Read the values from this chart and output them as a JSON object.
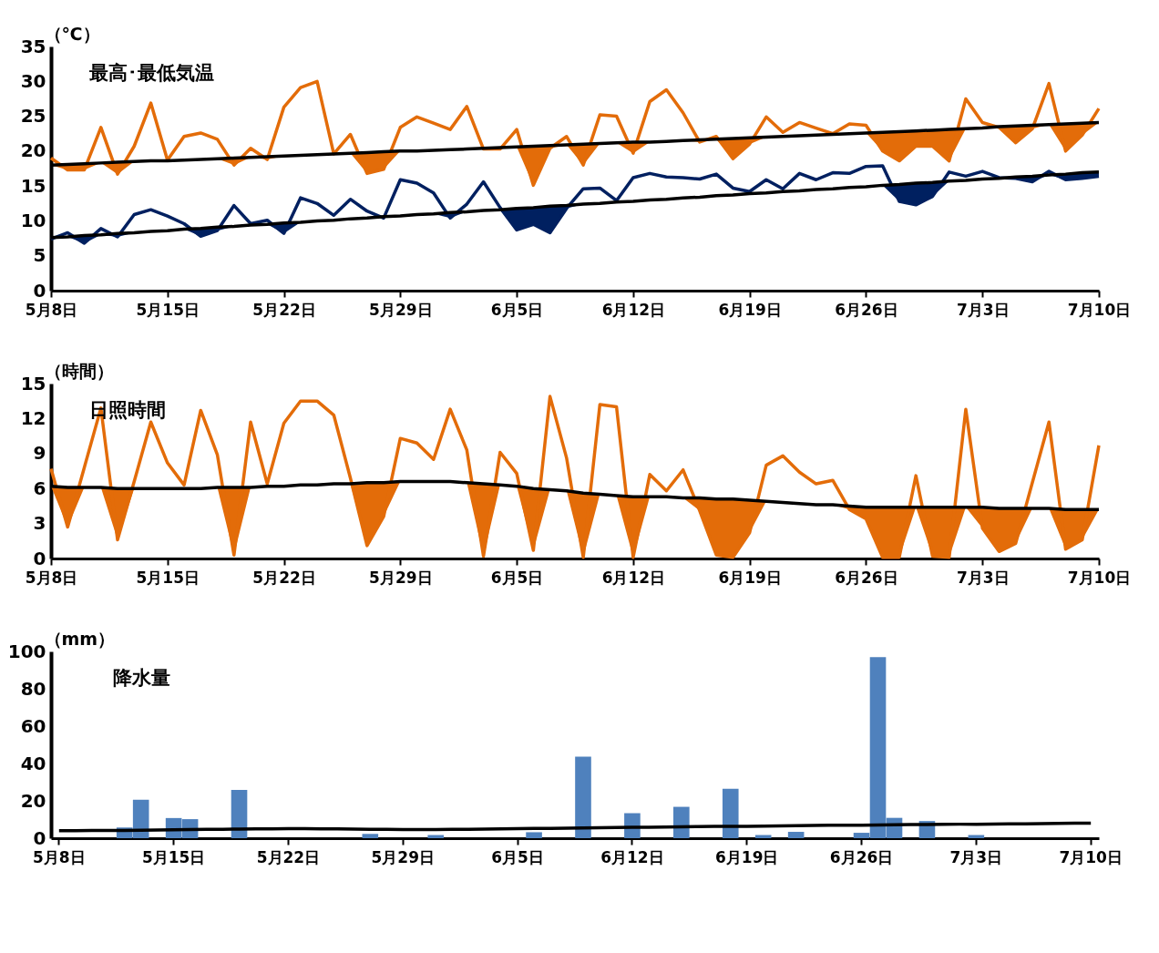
{
  "chart_data": [
    {
      "type": "line",
      "title": "最高･最低気温",
      "ylabel": "（℃）",
      "ylim": [
        0,
        35
      ],
      "yticks": [
        0,
        5,
        10,
        15,
        20,
        25,
        30,
        35
      ],
      "categories": [
        "5月8日",
        null,
        null,
        null,
        null,
        null,
        null,
        "5月15日",
        null,
        null,
        null,
        null,
        null,
        null,
        "5月22日",
        null,
        null,
        null,
        null,
        null,
        null,
        "5月29日",
        null,
        null,
        null,
        null,
        null,
        null,
        "6月5日",
        null,
        null,
        null,
        null,
        null,
        null,
        "6月12日",
        null,
        null,
        null,
        null,
        null,
        null,
        "6月19日",
        null,
        null,
        null,
        null,
        null,
        null,
        "6月26日",
        null,
        null,
        null,
        null,
        null,
        null,
        "7月3日",
        null,
        null,
        null,
        null,
        null,
        null,
        "7月10日"
      ],
      "series": [
        {
          "color": "#e36c09",
          "lower": [
            18.0,
            17.3,
            17.3,
            18.3,
            16.7,
            18.5,
            18.6,
            18.6,
            18.7,
            18.8,
            18.9,
            18.0,
            19.1,
            18.8,
            19.3,
            19.4,
            19.5,
            19.6,
            19.7,
            16.8,
            17.4,
            20.0,
            20.0,
            20.1,
            20.2,
            20.3,
            20.3,
            20.3,
            20.6,
            15.1,
            20.4,
            20.9,
            18.0,
            21.1,
            21.2,
            19.7,
            21.3,
            21.4,
            21.5,
            21.3,
            21.7,
            18.9,
            21.0,
            22.0,
            22.1,
            22.2,
            22.3,
            22.4,
            22.5,
            22.6,
            20.0,
            18.6,
            20.7,
            20.7,
            18.6,
            23.2,
            23.3,
            23.4,
            21.2,
            23.2,
            23.8,
            20.0,
            22.3,
            24.1
          ],
          "upper": [
            18.0,
            18.1,
            18.2,
            18.3,
            18.4,
            18.5,
            18.6,
            18.6,
            18.7,
            18.8,
            18.9,
            19.0,
            19.1,
            19.2,
            19.3,
            19.4,
            19.5,
            19.6,
            19.7,
            19.8,
            19.9,
            20.0,
            20.0,
            20.1,
            20.2,
            20.3,
            20.4,
            20.5,
            20.6,
            20.7,
            20.8,
            20.9,
            21.0,
            21.1,
            21.2,
            21.3,
            21.3,
            21.4,
            21.5,
            21.6,
            21.7,
            21.8,
            21.9,
            22.0,
            22.1,
            22.2,
            22.3,
            22.4,
            22.5,
            22.6,
            22.7,
            22.8,
            22.9,
            23.0,
            23.1,
            23.2,
            23.3,
            23.5,
            23.6,
            23.7,
            23.8,
            23.9,
            24.0,
            24.1
          ],
          "values": [
            19.0,
            17.3,
            17.3,
            23.4,
            16.7,
            20.7,
            26.9,
            18.7,
            22.1,
            22.6,
            21.7,
            18.0,
            20.4,
            18.8,
            26.3,
            29.1,
            30.0,
            19.6,
            22.4,
            16.8,
            17.4,
            23.4,
            24.9,
            24.0,
            23.1,
            26.4,
            20.3,
            20.3,
            23.1,
            15.1,
            20.4,
            22.1,
            18.0,
            25.2,
            25.0,
            19.7,
            27.1,
            28.8,
            25.5,
            21.3,
            22.1,
            18.9,
            21.0,
            24.9,
            22.7,
            24.1,
            23.3,
            22.5,
            23.9,
            23.7,
            20.0,
            18.6,
            20.7,
            20.7,
            18.6,
            27.5,
            24.1,
            23.4,
            21.2,
            23.2,
            29.7,
            20.0,
            22.3,
            26.1
          ]
        },
        {
          "color": "#000000",
          "values": [
            18.0,
            18.1,
            18.2,
            18.3,
            18.4,
            18.5,
            18.6,
            18.6,
            18.7,
            18.8,
            18.9,
            19.0,
            19.1,
            19.2,
            19.3,
            19.4,
            19.5,
            19.6,
            19.7,
            19.8,
            19.9,
            20.0,
            20.0,
            20.1,
            20.2,
            20.3,
            20.4,
            20.5,
            20.6,
            20.7,
            20.8,
            20.9,
            21.0,
            21.1,
            21.2,
            21.3,
            21.3,
            21.4,
            21.5,
            21.6,
            21.7,
            21.8,
            21.9,
            22.0,
            22.1,
            22.2,
            22.3,
            22.4,
            22.5,
            22.6,
            22.7,
            22.8,
            22.9,
            23.0,
            23.1,
            23.2,
            23.3,
            23.5,
            23.6,
            23.7,
            23.8,
            23.9,
            24.0,
            24.1
          ]
        },
        {
          "color": "#002060",
          "lower": [
            7.4,
            7.7,
            6.8,
            8.0,
            7.7,
            8.3,
            8.5,
            8.6,
            8.8,
            7.8,
            8.6,
            9.2,
            9.4,
            9.5,
            8.2,
            9.8,
            10.0,
            10.1,
            10.3,
            10.4,
            10.4,
            10.7,
            10.9,
            11.0,
            10.4,
            11.3,
            11.5,
            11.6,
            8.7,
            9.5,
            8.3,
            11.8,
            12.4,
            12.5,
            12.7,
            12.8,
            13.0,
            13.1,
            13.3,
            13.4,
            13.6,
            13.7,
            13.9,
            14.0,
            14.2,
            14.3,
            14.5,
            14.6,
            14.8,
            14.9,
            15.1,
            12.8,
            12.3,
            13.5,
            15.7,
            15.8,
            16.0,
            16.1,
            16.1,
            15.6,
            16.6,
            15.9,
            16.1,
            16.4
          ],
          "upper": [
            7.6,
            7.7,
            7.9,
            8.0,
            8.2,
            8.3,
            8.5,
            8.6,
            8.8,
            8.9,
            9.1,
            9.2,
            9.4,
            9.5,
            9.7,
            9.8,
            10.0,
            10.1,
            10.3,
            10.4,
            10.6,
            10.7,
            10.9,
            11.0,
            11.2,
            11.3,
            11.5,
            11.6,
            11.8,
            11.9,
            12.1,
            12.2,
            12.4,
            12.5,
            12.7,
            12.8,
            13.0,
            13.1,
            13.3,
            13.4,
            13.6,
            13.7,
            13.9,
            14.0,
            14.2,
            14.3,
            14.5,
            14.6,
            14.8,
            14.9,
            15.1,
            15.2,
            15.4,
            15.5,
            15.7,
            15.8,
            16.0,
            16.1,
            16.3,
            16.4,
            16.6,
            16.7,
            16.9,
            17.0
          ],
          "values": [
            7.4,
            8.3,
            6.8,
            8.9,
            7.7,
            10.9,
            11.6,
            10.7,
            9.6,
            7.8,
            8.6,
            12.2,
            9.6,
            10.1,
            8.2,
            13.3,
            12.5,
            10.8,
            13.1,
            11.4,
            10.4,
            15.9,
            15.4,
            14.0,
            10.4,
            12.4,
            15.6,
            11.9,
            8.7,
            9.5,
            8.3,
            11.8,
            14.6,
            14.7,
            12.9,
            16.2,
            16.8,
            16.3,
            16.2,
            16.0,
            16.7,
            14.7,
            14.2,
            15.9,
            14.6,
            16.8,
            15.9,
            16.9,
            16.8,
            17.8,
            17.9,
            12.8,
            12.3,
            13.5,
            17.0,
            16.4,
            17.1,
            16.2,
            16.1,
            15.6,
            17.1,
            15.9,
            16.1,
            16.4
          ]
        },
        {
          "color": "#000000",
          "values": [
            7.6,
            7.7,
            7.9,
            8.0,
            8.2,
            8.3,
            8.5,
            8.6,
            8.8,
            8.9,
            9.1,
            9.2,
            9.4,
            9.5,
            9.7,
            9.8,
            10.0,
            10.1,
            10.3,
            10.4,
            10.6,
            10.7,
            10.9,
            11.0,
            11.2,
            11.3,
            11.5,
            11.6,
            11.8,
            11.9,
            12.1,
            12.2,
            12.4,
            12.5,
            12.7,
            12.8,
            13.0,
            13.1,
            13.3,
            13.4,
            13.6,
            13.7,
            13.9,
            14.0,
            14.2,
            14.3,
            14.5,
            14.6,
            14.8,
            14.9,
            15.1,
            15.2,
            15.4,
            15.5,
            15.7,
            15.8,
            16.0,
            16.1,
            16.3,
            16.4,
            16.6,
            16.7,
            16.9,
            17.0
          ]
        }
      ]
    },
    {
      "type": "line",
      "title": "日照時間",
      "ylabel": "（時間）",
      "ylim": [
        0,
        15
      ],
      "yticks": [
        0,
        3,
        6,
        9,
        12,
        15
      ],
      "categories": [
        "5月8日",
        null,
        null,
        null,
        null,
        null,
        null,
        "5月15日",
        null,
        null,
        null,
        null,
        null,
        null,
        "5月22日",
        null,
        null,
        null,
        null,
        null,
        null,
        "5月29日",
        null,
        null,
        null,
        null,
        null,
        null,
        "6月5日",
        null,
        null,
        null,
        null,
        null,
        null,
        "6月12日",
        null,
        null,
        null,
        null,
        null,
        null,
        "6月19日",
        null,
        null,
        null,
        null,
        null,
        null,
        "6月26日",
        null,
        null,
        null,
        null,
        null,
        null,
        "7月3日",
        null,
        null,
        null,
        null,
        null,
        null,
        "7月10日"
      ],
      "series": [
        {
          "color": "#e36c09",
          "lower": [
            6.2,
            2.7,
            6.1,
            6.1,
            1.6,
            6.0,
            6.0,
            6.0,
            6.0,
            6.0,
            6.1,
            0.3,
            6.1,
            6.2,
            6.2,
            6.3,
            6.3,
            6.4,
            6.4,
            1.1,
            3.6,
            6.6,
            6.6,
            6.6,
            6.6,
            6.5,
            0.2,
            6.3,
            6.2,
            0.7,
            5.9,
            5.8,
            0.1,
            5.5,
            5.4,
            0.1,
            5.3,
            5.3,
            5.2,
            4.1,
            0.3,
            0.1,
            2.2,
            4.9,
            4.8,
            4.7,
            4.6,
            4.6,
            4.2,
            3.4,
            0.1,
            0.1,
            4.4,
            0.2,
            0.1,
            4.4,
            2.6,
            0.6,
            1.3,
            4.3,
            4.3,
            0.8,
            1.6,
            4.2
          ],
          "upper": [
            6.2,
            6.1,
            6.1,
            6.1,
            6.0,
            6.0,
            6.0,
            6.0,
            6.0,
            6.0,
            6.1,
            6.1,
            6.1,
            6.2,
            6.2,
            6.3,
            6.3,
            6.4,
            6.4,
            6.5,
            6.5,
            6.6,
            6.6,
            6.6,
            6.6,
            6.5,
            6.4,
            6.3,
            6.2,
            6.0,
            5.9,
            5.8,
            5.6,
            5.5,
            5.4,
            5.3,
            5.3,
            5.3,
            5.2,
            5.2,
            5.1,
            5.1,
            5.0,
            4.9,
            4.8,
            4.7,
            4.6,
            4.6,
            4.5,
            4.4,
            4.4,
            4.4,
            4.4,
            4.4,
            4.4,
            4.4,
            4.4,
            4.3,
            4.3,
            4.3,
            4.3,
            4.2,
            4.2,
            4.2
          ],
          "values": [
            7.7,
            2.7,
            7.8,
            12.9,
            1.6,
            6.6,
            11.7,
            8.2,
            6.3,
            12.7,
            8.9,
            0.3,
            11.7,
            6.4,
            11.6,
            13.5,
            13.5,
            12.3,
            6.9,
            1.1,
            3.6,
            10.3,
            9.9,
            8.5,
            12.8,
            9.3,
            0.2,
            9.1,
            7.3,
            0.7,
            13.9,
            8.6,
            0.1,
            13.2,
            13.0,
            0.1,
            7.2,
            5.8,
            7.6,
            4.1,
            0.3,
            0.1,
            2.2,
            8.0,
            8.8,
            7.4,
            6.4,
            6.7,
            4.2,
            3.4,
            0.1,
            0.1,
            7.1,
            0.2,
            0.1,
            12.8,
            2.6,
            0.6,
            1.3,
            6.5,
            11.7,
            0.8,
            1.6,
            9.7
          ]
        },
        {
          "color": "#000000",
          "values": [
            6.2,
            6.1,
            6.1,
            6.1,
            6.0,
            6.0,
            6.0,
            6.0,
            6.0,
            6.0,
            6.1,
            6.1,
            6.1,
            6.2,
            6.2,
            6.3,
            6.3,
            6.4,
            6.4,
            6.5,
            6.5,
            6.6,
            6.6,
            6.6,
            6.6,
            6.5,
            6.4,
            6.3,
            6.2,
            6.0,
            5.9,
            5.8,
            5.6,
            5.5,
            5.4,
            5.3,
            5.3,
            5.3,
            5.2,
            5.2,
            5.1,
            5.1,
            5.0,
            4.9,
            4.8,
            4.7,
            4.6,
            4.6,
            4.5,
            4.4,
            4.4,
            4.4,
            4.4,
            4.4,
            4.4,
            4.4,
            4.4,
            4.3,
            4.3,
            4.3,
            4.3,
            4.2,
            4.2,
            4.2
          ]
        }
      ]
    },
    {
      "type": "bar",
      "title": "降水量",
      "ylabel": "（mm）",
      "ylim": [
        0,
        100
      ],
      "yticks": [
        0,
        20,
        40,
        60,
        80,
        100
      ],
      "categories": [
        "5月8日",
        null,
        null,
        null,
        null,
        null,
        null,
        "5月15日",
        null,
        null,
        null,
        null,
        null,
        null,
        "5月22日",
        null,
        null,
        null,
        null,
        null,
        null,
        "5月29日",
        null,
        null,
        null,
        null,
        null,
        null,
        "6月5日",
        null,
        null,
        null,
        null,
        null,
        null,
        "6月12日",
        null,
        null,
        null,
        null,
        null,
        null,
        "6月19日",
        null,
        null,
        null,
        null,
        null,
        null,
        "6月26日",
        null,
        null,
        null,
        null,
        null,
        null,
        "7月3日",
        null,
        null,
        null,
        null,
        null,
        null,
        "7月10日"
      ],
      "series": [
        {
          "color": "#4f81bd",
          "values": [
            null,
            null,
            null,
            null,
            5.7,
            20.6,
            null,
            10.8,
            10.2,
            null,
            null,
            25.8,
            null,
            null,
            null,
            null,
            null,
            null,
            null,
            2.3,
            null,
            null,
            null,
            1.7,
            null,
            null,
            null,
            null,
            null,
            3.2,
            null,
            null,
            43.7,
            null,
            null,
            13.4,
            null,
            null,
            16.8,
            null,
            null,
            26.5,
            null,
            1.7,
            null,
            3.4,
            null,
            null,
            null,
            2.9,
            96.9,
            10.9,
            null,
            9.2,
            null,
            null,
            1.7,
            null,
            null,
            null,
            null,
            null,
            null,
            null
          ]
        },
        {
          "type": "line",
          "color": "#000000",
          "values": [
            4.0,
            4.0,
            4.1,
            4.1,
            4.2,
            4.3,
            4.4,
            4.5,
            4.6,
            4.7,
            4.8,
            4.9,
            5.0,
            5.0,
            5.1,
            5.1,
            5.0,
            5.0,
            4.9,
            4.8,
            4.7,
            4.6,
            4.6,
            4.6,
            4.7,
            4.8,
            4.9,
            5.0,
            5.1,
            5.2,
            5.3,
            5.4,
            5.5,
            5.6,
            5.7,
            5.8,
            5.9,
            6.0,
            6.1,
            6.2,
            6.3,
            6.3,
            6.4,
            6.5,
            6.6,
            6.7,
            6.8,
            6.9,
            7.0,
            7.0,
            7.1,
            7.2,
            7.3,
            7.3,
            7.4,
            7.5,
            7.5,
            7.6,
            7.7,
            7.7,
            7.8,
            7.9,
            8.0,
            8.1
          ]
        }
      ]
    }
  ]
}
